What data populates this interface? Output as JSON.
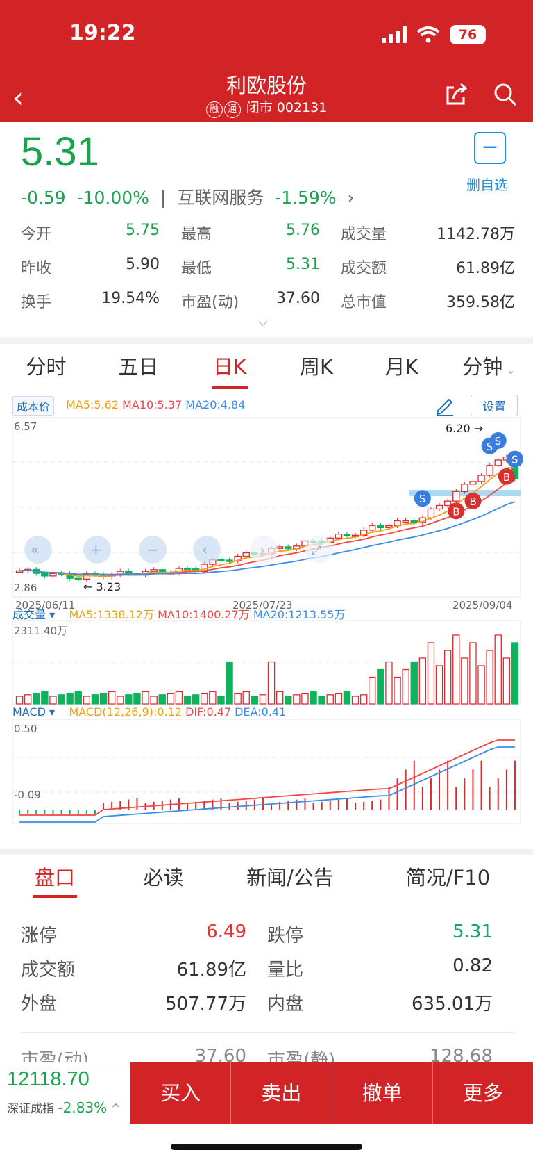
{
  "status_bar": {
    "time": "19:22",
    "battery": "76"
  },
  "header": {
    "title": "利欧股份",
    "tags": [
      "融",
      "通"
    ],
    "status": "闭市",
    "code": "002131"
  },
  "quote": {
    "price": "5.31",
    "change": "-0.59",
    "change_pct": "-10.00%",
    "sector": "互联网服务",
    "sector_pct": "-1.59%",
    "fav_label": "删自选",
    "fav_symbol": "−",
    "expand_symbol": "⌵",
    "stats": [
      [
        {
          "label": "今开",
          "value": "5.75",
          "color": "green"
        },
        {
          "label": "最高",
          "value": "5.76",
          "color": "green"
        },
        {
          "label": "成交量",
          "value": "1142.78万",
          "color": "normal"
        }
      ],
      [
        {
          "label": "昨收",
          "value": "5.90",
          "color": "normal"
        },
        {
          "label": "最低",
          "value": "5.31",
          "color": "green"
        },
        {
          "label": "成交额",
          "value": "61.89亿",
          "color": "normal"
        }
      ],
      [
        {
          "label": "换手",
          "value": "19.54%",
          "color": "normal"
        },
        {
          "label": "市盈(动)",
          "value": "37.60",
          "color": "normal"
        },
        {
          "label": "总市值",
          "value": "359.58亿",
          "color": "normal"
        }
      ]
    ]
  },
  "kline_tabs": [
    "分时",
    "五日",
    "日K",
    "周K",
    "月K",
    "分钟"
  ],
  "kline_active": 2,
  "kline": {
    "cost_label": "成本价",
    "ma5": "MA5:5.62",
    "ma10": "MA10:5.37",
    "ma20": "MA20:4.84",
    "settings": "设置",
    "y_max": "6.57",
    "y_min": "2.86",
    "high_mark": "6.20 →",
    "low_mark": "← 3.23",
    "dates": [
      "2025/06/11",
      "2025/07/23",
      "2025/09/04"
    ],
    "colors": {
      "ma5": "#f2a116",
      "ma10": "#f04848",
      "ma20": "#3a8ee6",
      "up": "#e0282e",
      "down": "#0fb35e"
    }
  },
  "volume": {
    "label": "成交量",
    "ma5": "MA5:1338.12万",
    "ma10": "MA10:1400.27万",
    "ma20": "MA20:1213.55万",
    "y_max": "2311.40万"
  },
  "macd": {
    "label": "MACD",
    "macd": "MACD(12,26,9):0.12",
    "dif": "DIF:0.47",
    "dea": "DEA:0.41",
    "y_max": "0.50",
    "y_min": "-0.09"
  },
  "info_tabs": [
    "盘口",
    "必读",
    "新闻/公告",
    "简况/F10"
  ],
  "info_active": 0,
  "pankou": [
    [
      {
        "label": "涨停",
        "value": "6.49",
        "color": "red"
      },
      {
        "label": "跌停",
        "value": "5.31",
        "color": "green"
      }
    ],
    [
      {
        "label": "成交额",
        "value": "61.89亿",
        "color": "normal"
      },
      {
        "label": "量比",
        "value": "0.82",
        "color": "normal"
      }
    ],
    [
      {
        "label": "外盘",
        "value": "507.77万",
        "color": "normal"
      },
      {
        "label": "内盘",
        "value": "635.01万",
        "color": "normal"
      }
    ]
  ],
  "pankou_partial": [
    {
      "label": "市盈(动)",
      "value": "37.60"
    },
    {
      "label": "市盈(静)",
      "value": "128.68"
    }
  ],
  "index": {
    "value": "12118.70",
    "name": "深证成指",
    "pct": "-2.83%"
  },
  "actions": [
    "买入",
    "卖出",
    "撤单",
    "更多"
  ]
}
